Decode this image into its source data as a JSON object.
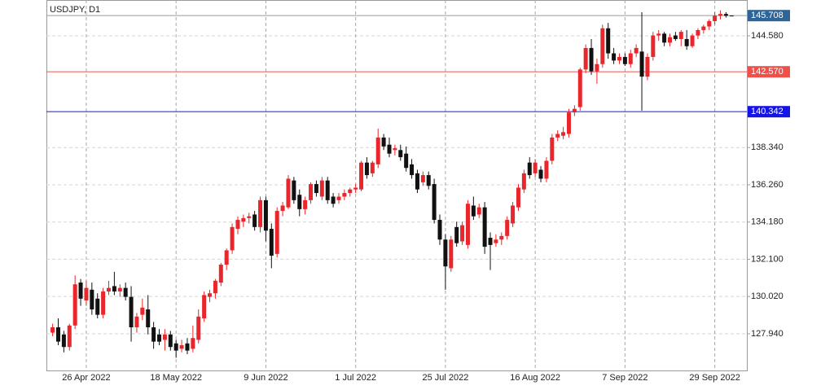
{
  "chart_data": {
    "type": "candlestick",
    "title": "USDJPY, D1",
    "bull_color": "#e8262b",
    "bear_color": "#111111",
    "grid": true,
    "ylim": [
      125.89,
      146.58
    ],
    "yticks": [
      {
        "value": 127.94,
        "label": "127.940"
      },
      {
        "value": 130.02,
        "label": "130.020"
      },
      {
        "value": 132.1,
        "label": "132.100"
      },
      {
        "value": 134.18,
        "label": "134.180"
      },
      {
        "value": 136.26,
        "label": "136.260"
      },
      {
        "value": 138.34,
        "label": "138.340"
      },
      {
        "value": 144.58,
        "label": "144.580"
      }
    ],
    "hlines": [
      {
        "value": 145.708,
        "label": "145.708",
        "color": "#2f6496",
        "line_color": "#9a9a9a"
      },
      {
        "value": 142.57,
        "label": "142.570",
        "color": "#f0504a",
        "line_color": "#f0504a"
      },
      {
        "value": 140.342,
        "label": "140.342",
        "color": "#1414e6",
        "line_color": "#1414e6"
      }
    ],
    "categories": [
      null,
      null,
      null,
      null,
      null,
      null,
      "26 Apr 2022",
      null,
      null,
      null,
      null,
      null,
      null,
      null,
      null,
      null,
      null,
      null,
      null,
      null,
      null,
      null,
      "18 May 2022",
      null,
      null,
      null,
      null,
      null,
      null,
      null,
      null,
      null,
      null,
      null,
      null,
      null,
      null,
      null,
      "9 Jun 2022",
      null,
      null,
      null,
      null,
      null,
      null,
      null,
      null,
      null,
      null,
      null,
      null,
      null,
      null,
      null,
      "1 Jul 2022",
      null,
      null,
      null,
      null,
      null,
      null,
      null,
      null,
      null,
      null,
      null,
      null,
      null,
      null,
      null,
      "25 Jul 2022",
      null,
      null,
      null,
      null,
      null,
      null,
      null,
      null,
      null,
      null,
      null,
      null,
      null,
      null,
      null,
      "16 Aug 2022",
      null,
      null,
      null,
      null,
      null,
      null,
      null,
      null,
      null,
      null,
      null,
      null,
      null,
      null,
      null,
      "7 Sep 2022",
      null,
      null,
      null,
      null,
      null,
      null,
      null,
      null,
      null,
      null,
      null,
      null,
      null,
      null,
      null,
      "29 Sep 2022",
      null,
      null,
      null
    ],
    "open": [
      128.0,
      128.3,
      127.9,
      127.2,
      128.4,
      130.8,
      129.8,
      130.4,
      129.9,
      129.0,
      130.3,
      130.6,
      130.3,
      130.5,
      130.0,
      128.3,
      129.0,
      129.3,
      128.3,
      127.9,
      127.6,
      127.9,
      127.4,
      127.1,
      127.4,
      127.1,
      127.6,
      128.8,
      130.0,
      130.2,
      130.8,
      131.8,
      132.6,
      133.8,
      134.2,
      134.4,
      134.6,
      133.9,
      135.4,
      133.8,
      132.4,
      134.8,
      135.0,
      136.5,
      135.7,
      134.9,
      135.4,
      136.3,
      135.6,
      136.5,
      135.6,
      135.4,
      135.6,
      135.8,
      136.0,
      136.0,
      137.5,
      136.9,
      137.4,
      138.9,
      138.5,
      138.2,
      138.2,
      138.0,
      137.4,
      136.9,
      136.4,
      136.8,
      136.3,
      134.3,
      133.2,
      131.6,
      133.9,
      133.1,
      132.9,
      135.1,
      134.6,
      135.0,
      133.3,
      133.0,
      133.2,
      133.4,
      134.1,
      135.0,
      136.0,
      137.5,
      136.9,
      137.1,
      136.6,
      137.6,
      138.9,
      139.0,
      139.1,
      140.3,
      140.6,
      142.7,
      143.9,
      142.6,
      143.0,
      145.0,
      143.6,
      143.2,
      143.4,
      143.0,
      143.6,
      143.7,
      142.3,
      143.4,
      144.6,
      144.7,
      144.2,
      144.6,
      144.4,
      144.4,
      144.0,
      144.6,
      144.9,
      145.1,
      145.4,
      145.7,
      145.8,
      145.71
    ],
    "high": [
      128.5,
      128.8,
      128.1,
      128.5,
      131.2,
      131.0,
      130.9,
      130.8,
      130.2,
      130.5,
      130.9,
      131.4,
      130.7,
      130.8,
      130.6,
      129.1,
      129.9,
      130.1,
      128.6,
      128.2,
      128.2,
      128.1,
      127.6,
      127.6,
      127.7,
      128.4,
      129.3,
      130.3,
      130.4,
      131.0,
      131.9,
      132.7,
      134.1,
      134.5,
      134.6,
      134.7,
      134.8,
      135.6,
      135.6,
      134.1,
      135.0,
      135.3,
      136.8,
      136.7,
      136.0,
      135.6,
      136.4,
      136.5,
      136.7,
      136.7,
      135.8,
      135.8,
      136.0,
      136.1,
      136.3,
      137.6,
      137.8,
      137.6,
      139.4,
      139.1,
      138.9,
      138.5,
      138.5,
      138.4,
      137.7,
      137.1,
      137.0,
      137.0,
      136.6,
      134.6,
      133.5,
      133.4,
      134.2,
      134.2,
      135.4,
      135.6,
      135.2,
      135.3,
      133.6,
      133.5,
      133.6,
      134.5,
      135.3,
      136.3,
      137.1,
      137.8,
      137.7,
      137.3,
      137.8,
      139.1,
      139.3,
      139.5,
      140.5,
      140.7,
      142.8,
      144.1,
      144.4,
      143.3,
      145.2,
      145.3,
      143.9,
      143.6,
      143.6,
      143.8,
      144.1,
      145.9,
      143.6,
      144.8,
      144.9,
      144.8,
      144.7,
      144.8,
      144.9,
      144.9,
      144.7,
      145.0,
      145.2,
      145.5,
      145.9,
      146.0,
      145.9,
      145.72
    ],
    "low": [
      127.8,
      127.3,
      126.9,
      127.0,
      128.2,
      129.5,
      129.5,
      129.0,
      128.8,
      128.8,
      130.1,
      130.1,
      130.0,
      129.8,
      127.5,
      128.0,
      128.7,
      127.9,
      127.1,
      127.3,
      127.0,
      127.0,
      126.6,
      126.9,
      126.8,
      126.9,
      127.4,
      128.6,
      129.7,
      129.9,
      130.6,
      131.5,
      132.4,
      133.5,
      133.9,
      134.1,
      133.7,
      133.6,
      133.1,
      131.6,
      132.2,
      134.5,
      134.9,
      135.2,
      134.5,
      134.6,
      135.2,
      135.6,
      135.4,
      135.2,
      135.0,
      135.2,
      135.4,
      135.6,
      135.8,
      135.9,
      136.6,
      136.7,
      137.2,
      138.2,
      137.8,
      137.9,
      137.6,
      137.0,
      136.6,
      135.8,
      136.2,
      136.0,
      134.1,
      132.9,
      130.4,
      131.4,
      132.8,
      132.9,
      132.7,
      134.3,
      134.4,
      132.4,
      131.5,
      132.8,
      132.9,
      133.2,
      133.9,
      134.8,
      135.8,
      136.6,
      136.7,
      136.4,
      136.4,
      137.4,
      138.7,
      138.8,
      138.9,
      140.1,
      140.4,
      142.5,
      142.4,
      141.9,
      142.8,
      143.3,
      143.0,
      143.0,
      142.9,
      142.8,
      143.4,
      140.4,
      142.1,
      143.2,
      144.3,
      144.0,
      144.0,
      144.3,
      144.0,
      143.8,
      143.9,
      144.4,
      144.7,
      144.9,
      145.2,
      145.5,
      145.6,
      145.7
    ],
    "close": [
      128.3,
      127.5,
      127.2,
      128.4,
      130.7,
      129.9,
      130.5,
      129.3,
      129.0,
      130.3,
      130.5,
      130.3,
      130.5,
      130.0,
      128.3,
      128.9,
      129.4,
      128.3,
      127.5,
      127.5,
      127.9,
      127.2,
      127.0,
      127.3,
      127.0,
      127.7,
      128.9,
      130.1,
      130.2,
      130.9,
      131.8,
      132.6,
      133.9,
      134.3,
      134.4,
      134.5,
      133.9,
      135.4,
      133.7,
      132.3,
      134.8,
      135.1,
      136.6,
      135.4,
      134.9,
      135.4,
      136.3,
      135.8,
      136.5,
      135.4,
      135.2,
      135.6,
      135.8,
      136.0,
      136.1,
      137.5,
      136.8,
      137.5,
      138.9,
      138.4,
      138.0,
      138.3,
      137.8,
      137.2,
      136.8,
      136.0,
      136.8,
      136.2,
      134.3,
      133.2,
      131.7,
      133.2,
      133.0,
      134.0,
      135.2,
      134.5,
      135.0,
      132.8,
      132.9,
      133.2,
      133.4,
      134.3,
      135.1,
      136.1,
      136.9,
      136.8,
      137.5,
      136.6,
      137.6,
      138.9,
      139.1,
      139.2,
      140.3,
      140.5,
      142.7,
      143.9,
      142.6,
      143.0,
      145.0,
      143.6,
      143.2,
      143.4,
      143.0,
      143.6,
      143.9,
      142.3,
      143.4,
      144.6,
      144.7,
      144.2,
      144.5,
      144.4,
      144.8,
      144.0,
      144.6,
      144.9,
      145.1,
      145.4,
      145.7,
      145.8,
      145.7,
      145.708
    ]
  }
}
